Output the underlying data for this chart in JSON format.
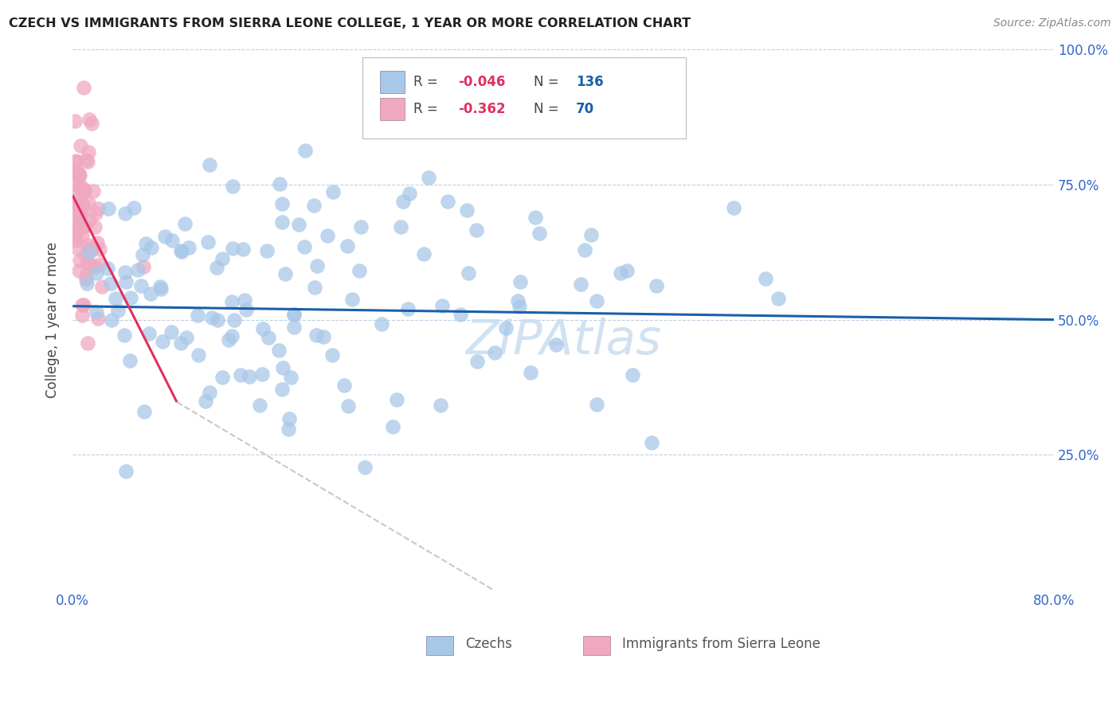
{
  "title": "CZECH VS IMMIGRANTS FROM SIERRA LEONE COLLEGE, 1 YEAR OR MORE CORRELATION CHART",
  "source": "Source: ZipAtlas.com",
  "ylabel": "College, 1 year or more",
  "xlim": [
    0.0,
    0.8
  ],
  "ylim": [
    0.0,
    1.0
  ],
  "xtick_positions": [
    0.0,
    0.1,
    0.2,
    0.3,
    0.4,
    0.5,
    0.6,
    0.7,
    0.8
  ],
  "xticklabels": [
    "0.0%",
    "",
    "",
    "",
    "",
    "",
    "",
    "",
    "80.0%"
  ],
  "ytick_positions": [
    0.0,
    0.25,
    0.5,
    0.75,
    1.0
  ],
  "yticklabels_right": [
    "",
    "25.0%",
    "50.0%",
    "75.0%",
    "100.0%"
  ],
  "czech_R": -0.046,
  "czech_N": 136,
  "sierra_R": -0.362,
  "sierra_N": 70,
  "czech_color": "#a8c8e8",
  "sierra_color": "#f0a8c0",
  "czech_line_color": "#1a5fa8",
  "sierra_line_color": "#e03060",
  "sierra_dash_color": "#c8c8c8",
  "watermark_color": "#c8ddf0",
  "legend_box_color": "#e8e8e8",
  "legend_r_color": "#e03060",
  "legend_n_color": "#1a5fa8",
  "tick_label_color": "#3366cc",
  "ylabel_color": "#444444",
  "title_color": "#222222",
  "source_color": "#888888"
}
